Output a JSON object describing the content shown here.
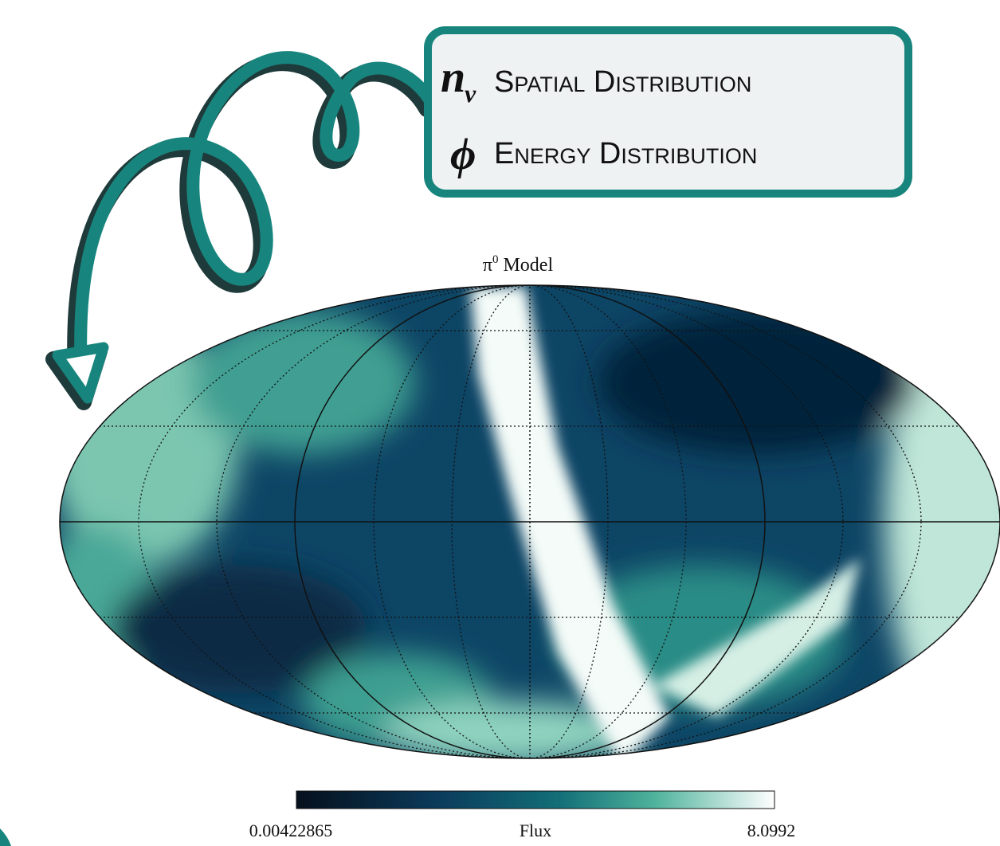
{
  "legend_box": {
    "lines": [
      {
        "symbol": "n",
        "subscript": "ν",
        "label": "Spatial Distribution"
      },
      {
        "symbol": "ϕ",
        "label": "Energy Distribution"
      }
    ]
  },
  "map": {
    "title_symbol": "π",
    "title_superscript": "0",
    "title_text": "Model"
  },
  "colorbar": {
    "min_label": "0.00422865",
    "label": "Flux",
    "max_label": "8.0992"
  }
}
